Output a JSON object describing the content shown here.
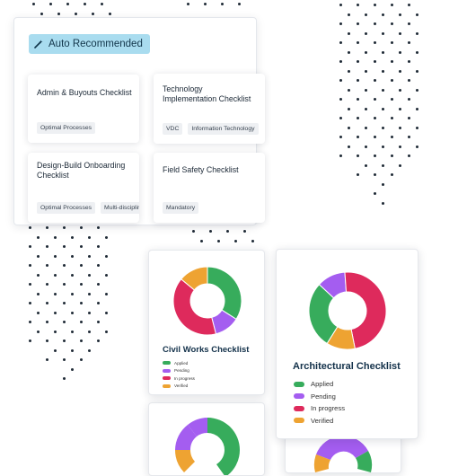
{
  "panel": {
    "badge_label": "Auto Recommended",
    "badge_icon": "magic-wand-icon",
    "cards": [
      {
        "title": "Admin & Buyouts Checklist",
        "tags": [
          "Optimal Processes"
        ]
      },
      {
        "title": "Technology Implementation Checklist",
        "tags": [
          "VDC",
          "Information Technology"
        ]
      },
      {
        "title": "Design-Build Onboarding Checklist",
        "tags": [
          "Optimal Processes",
          "Multi-disciplinary"
        ]
      },
      {
        "title": "Field Safety Checklist",
        "tags": [
          "Mandatory"
        ]
      }
    ]
  },
  "colors": {
    "applied": "#37ac5c",
    "pending": "#a45df0",
    "in_progress": "#de2a5c",
    "verified": "#eea332"
  },
  "civil_works": {
    "title": "Civil Works Checklist",
    "legend": [
      "Applied",
      "Pending",
      "In progress",
      "Verified"
    ],
    "chart_data": {
      "type": "pie",
      "categories": [
        "Applied",
        "Pending",
        "In progress",
        "Verified"
      ],
      "values": [
        34,
        12,
        40,
        14
      ]
    }
  },
  "architectural": {
    "title": "Architectural Checklist",
    "legend": [
      "Applied",
      "Pending",
      "In progress",
      "Verified"
    ],
    "chart_data": {
      "type": "pie",
      "categories": [
        "Applied",
        "Pending",
        "In progress",
        "Verified"
      ],
      "values": [
        28,
        12,
        48,
        12
      ]
    }
  }
}
